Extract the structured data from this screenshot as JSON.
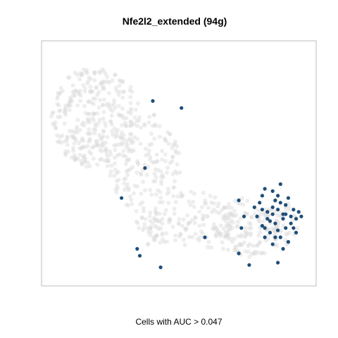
{
  "chart_data": {
    "type": "scatter",
    "title": "Nfe2l2_extended (94g)",
    "xlabel": "Cells with AUC > 0.047",
    "ylabel": "",
    "xlim": [
      0,
      100
    ],
    "ylim": [
      0,
      100
    ],
    "axes_ticks": false,
    "grid": false,
    "colors": {
      "background_cells": "#d9d9d9",
      "highlighted_cells": "#1f4e79",
      "panel_border": "#bdbdbd"
    },
    "series": [
      {
        "group": "below_threshold",
        "color": "#d9d9d9",
        "opacity": 0.45,
        "cluster_regions": [
          {
            "cx": 18,
            "cy": 70,
            "rx": 17,
            "ry": 22,
            "n": 330
          },
          {
            "cx": 37,
            "cy": 50,
            "rx": 14,
            "ry": 22,
            "n": 160
          },
          {
            "cx": 55,
            "cy": 25,
            "rx": 18,
            "ry": 13,
            "n": 140
          },
          {
            "cx": 76,
            "cy": 22,
            "rx": 13,
            "ry": 13,
            "n": 120
          },
          {
            "cx": 38,
            "cy": 20,
            "rx": 6,
            "ry": 8,
            "n": 30
          },
          {
            "cx": 88,
            "cy": 24,
            "rx": 8,
            "ry": 10,
            "n": 60
          }
        ]
      },
      {
        "group": "above_threshold",
        "color": "#1f4e79",
        "points": [
          [
            40,
            77
          ],
          [
            51,
            74
          ],
          [
            37,
            48
          ],
          [
            28,
            35
          ],
          [
            60,
            18
          ],
          [
            34,
            13
          ],
          [
            35,
            10
          ],
          [
            43,
            5
          ],
          [
            73,
            34
          ],
          [
            75,
            27
          ],
          [
            74,
            22
          ],
          [
            73,
            11
          ],
          [
            77,
            6
          ],
          [
            88,
            7
          ],
          [
            89,
            41
          ],
          [
            83,
            39
          ],
          [
            82,
            36
          ],
          [
            87,
            34
          ],
          [
            91,
            32
          ],
          [
            88,
            30
          ],
          [
            94,
            30
          ],
          [
            86,
            28
          ],
          [
            80,
            27
          ],
          [
            84,
            26
          ],
          [
            90,
            26
          ],
          [
            95,
            26
          ],
          [
            82,
            23
          ],
          [
            87,
            24
          ],
          [
            91,
            22
          ],
          [
            85,
            20
          ],
          [
            89,
            18
          ],
          [
            83,
            18
          ],
          [
            86,
            15
          ],
          [
            92,
            16
          ],
          [
            90,
            13
          ],
          [
            95,
            20
          ],
          [
            97,
            27
          ],
          [
            92,
            35
          ],
          [
            86,
            38
          ],
          [
            81,
            33
          ],
          [
            88,
            21
          ],
          [
            93,
            24
          ],
          [
            84,
            29
          ],
          [
            90,
            28
          ],
          [
            86,
            31
          ],
          [
            83,
            22
          ],
          [
            94,
            22
          ],
          [
            79,
            31
          ],
          [
            96,
            29
          ],
          [
            85,
            25
          ],
          [
            87,
            18
          ],
          [
            91,
            28
          ],
          [
            89,
            33
          ],
          [
            82,
            30
          ],
          [
            93,
            27
          ],
          [
            88,
            36
          ]
        ]
      }
    ]
  }
}
